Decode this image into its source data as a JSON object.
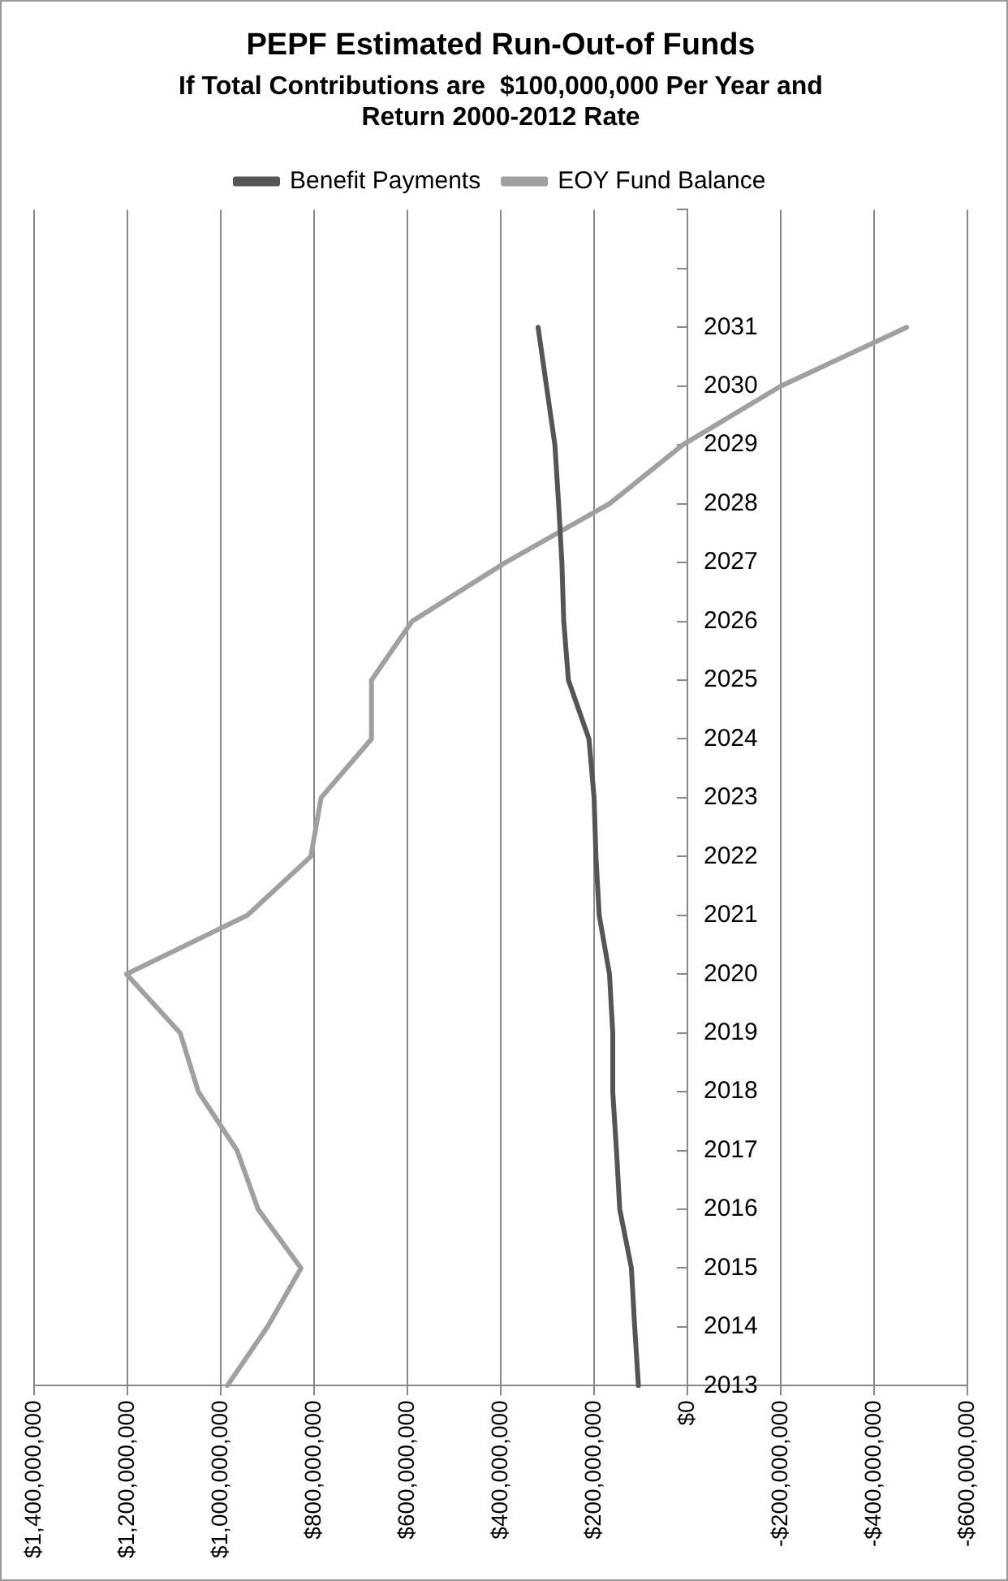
{
  "chart_data": {
    "type": "line",
    "orientation": "horizontal",
    "title": "PEPF Estimated Run-Out-of Funds",
    "subtitle": "If Total Contributions are  $100,000,000 Per Year and Return 2000-2012 Rate",
    "categories": [
      null,
      null,
      "2031",
      "2030",
      "2029",
      "2028",
      "2027",
      "2026",
      "2025",
      "2024",
      "2023",
      "2022",
      "2021",
      "2020",
      "2019",
      "2018",
      "2017",
      "2016",
      "2015",
      "2014",
      "2013"
    ],
    "series": [
      {
        "name": "Benefit Payments",
        "color": "#555555",
        "values": [
          null,
          null,
          320000000,
          302000000,
          284000000,
          276000000,
          269000000,
          265000000,
          255000000,
          211000000,
          200000000,
          196000000,
          189000000,
          167000000,
          160000000,
          160000000,
          152000000,
          145000000,
          120000000,
          113000000,
          105000000
        ]
      },
      {
        "name": "EOY Fund Balance",
        "color": "#a0a0a0",
        "values": [
          null,
          null,
          -470000000,
          -200000000,
          10000000,
          167000000,
          390000000,
          590000000,
          677000000,
          677000000,
          785000000,
          807000000,
          943000000,
          1202000000,
          1087000000,
          1048000000,
          965000000,
          920000000,
          828000000,
          900000000,
          986000000
        ]
      }
    ],
    "xlim": [
      1400000000,
      -600000000
    ],
    "xticks": [
      {
        "value": 1400000000,
        "label": "$1,400,000,000"
      },
      {
        "value": 1200000000,
        "label": "$1,200,000,000"
      },
      {
        "value": 1000000000,
        "label": "$1,000,000,000"
      },
      {
        "value": 800000000,
        "label": "$800,000,000"
      },
      {
        "value": 600000000,
        "label": "$600,000,000"
      },
      {
        "value": 400000000,
        "label": "$400,000,000"
      },
      {
        "value": 200000000,
        "label": "$200,000,000"
      },
      {
        "value": 0,
        "label": "$0"
      },
      {
        "value": -200000000,
        "label": "-$200,000,000"
      },
      {
        "value": -400000000,
        "label": "-$400,000,000"
      },
      {
        "value": -600000000,
        "label": "-$600,000,000"
      }
    ],
    "grid": "x",
    "legend": "top",
    "marker": "none",
    "line_style": "solid"
  }
}
